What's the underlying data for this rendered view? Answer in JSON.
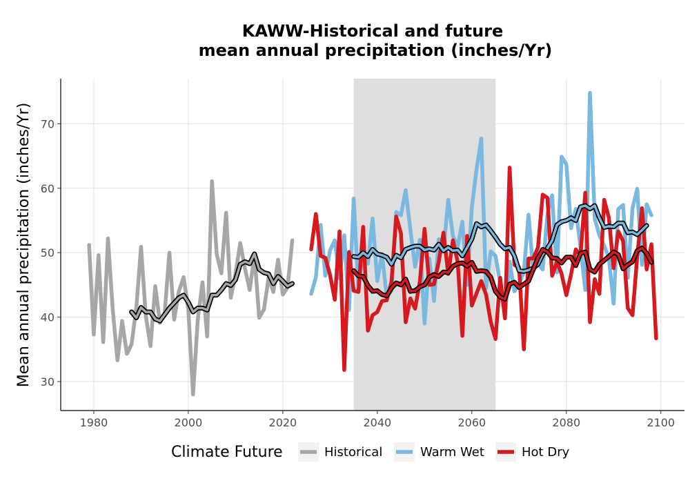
{
  "chart_data": {
    "type": "line",
    "title_lines": [
      "KAWW-Historical and future",
      "mean annual precipitation (inches/Yr)"
    ],
    "xlabel": "",
    "ylabel": "Mean annual precipitation (inches/Yr)",
    "xlim": [
      1973,
      2105
    ],
    "ylim": [
      25.5,
      77
    ],
    "xticks": [
      1980,
      2000,
      2020,
      2040,
      2060,
      2080,
      2100
    ],
    "yticks": [
      30,
      40,
      50,
      60,
      70
    ],
    "grid": true,
    "shaded_period": [
      2035,
      2065
    ],
    "legend": {
      "title": "Climate Future",
      "position": "bottom",
      "entries": [
        "Historical",
        "Warm Wet",
        "Hot Dry"
      ]
    },
    "colors": {
      "Historical": "#a6a6a6",
      "Warm Wet": "#7bb8e0",
      "Hot Dry": "#d6191e",
      "smooth": "#000000",
      "shade": "#dcdcdc",
      "grid": "#e0e0e0"
    },
    "series": [
      {
        "name": "Historical",
        "x_start": 1979,
        "values": [
          51.2,
          37.3,
          49.6,
          36.1,
          52.2,
          41.3,
          33.3,
          39.4,
          34.3,
          35.8,
          41.5,
          50.9,
          40.2,
          35.5,
          44.8,
          39.1,
          40.7,
          50.0,
          39.6,
          44.0,
          46.2,
          41.2,
          28.0,
          39.6,
          45.4,
          37.0,
          61.1,
          49.8,
          46.8,
          56.2,
          43.0,
          46.8,
          51.5,
          47.5,
          44.2,
          49.7,
          39.9,
          41.2,
          46.1,
          43.9,
          48.9,
          43.5,
          44.6,
          51.9
        ]
      },
      {
        "name": "Warm Wet",
        "x_start": 2026,
        "values": [
          43.6,
          46.2,
          54.3,
          46.4,
          50.4,
          51.9,
          46.0,
          52.7,
          41.1,
          58.4,
          44.3,
          50.8,
          48.3,
          55.3,
          45.6,
          49.8,
          43.1,
          44.1,
          56.3,
          55.8,
          59.7,
          53.5,
          47.8,
          52.0,
          39.0,
          49.1,
          42.5,
          52.1,
          50.2,
          58.2,
          52.6,
          50.9,
          54.8,
          45.0,
          57.0,
          63.0,
          67.7,
          44.5,
          50.2,
          49.5,
          45.3,
          40.1,
          48.6,
          44.0,
          45.2,
          47.0,
          55.9,
          47.2,
          48.3,
          47.4,
          56.0,
          58.9,
          46.9,
          64.9,
          63.7,
          53.8,
          56.8,
          50.8,
          44.2,
          74.8,
          55.3,
          52.7,
          51.1,
          49.2,
          42.1,
          56.8,
          57.4,
          46.1,
          56.9,
          59.9,
          48.1,
          57.5,
          55.8
        ]
      },
      {
        "name": "Hot Dry",
        "x_start": 2026,
        "values": [
          50.5,
          56.0,
          49.5,
          49.2,
          46.5,
          42.7,
          53.3,
          31.8,
          50.1,
          44.1,
          43.9,
          54.0,
          37.9,
          40.3,
          40.8,
          42.5,
          42.6,
          45.5,
          55.6,
          53.0,
          39.2,
          42.9,
          41.3,
          45.5,
          53.7,
          45.0,
          45.1,
          48.6,
          53.1,
          46.7,
          51.9,
          48.6,
          37.1,
          52.6,
          41.8,
          43.7,
          45.6,
          43.5,
          39.3,
          36.6,
          46.1,
          39.8,
          63.2,
          48.1,
          47.7,
          35.0,
          49.1,
          49.1,
          50.8,
          59.0,
          58.5,
          46.4,
          48.6,
          46.7,
          43.4,
          46.6,
          50.5,
          49.6,
          59.3,
          39.2,
          45.9,
          43.6,
          58.2,
          55.4,
          47.6,
          53.3,
          51.8,
          41.4,
          40.3,
          49.4,
          56.9,
          47.4,
          51.3,
          36.7
        ]
      },
      {
        "name": "Historical (10-yr running mean)",
        "x_start": 1988,
        "values": [
          40.8,
          39.9,
          41.5,
          40.8,
          40.8,
          39.7,
          39.4,
          40.4,
          41.4,
          42.2,
          43.0,
          43.4,
          42.3,
          40.8,
          41.4,
          41.4,
          41.1,
          43.4,
          43.4,
          44.2,
          45.2,
          44.9,
          45.8,
          48.2,
          48.6,
          48.3,
          49.8,
          47.4,
          46.9,
          46.7,
          45.2,
          46.3,
          45.6,
          44.8,
          45.2
        ]
      },
      {
        "name": "Warm Wet (10-yr running mean)",
        "x_start": 2035,
        "values": [
          49.4,
          49.3,
          50.0,
          49.4,
          50.5,
          49.8,
          49.6,
          49.3,
          48.2,
          49.6,
          49.2,
          50.5,
          50.8,
          51.0,
          51.0,
          50.4,
          50.6,
          50.4,
          51.3,
          50.3,
          50.8,
          50.3,
          50.4,
          49.5,
          50.8,
          52.1,
          54.5,
          54.0,
          54.3,
          53.4,
          52.4,
          51.3,
          50.6,
          50.8,
          49.5,
          47.2,
          47.1,
          47.3,
          47.6,
          48.2,
          49.7,
          50.7,
          51.9,
          54.3,
          54.8,
          55.0,
          55.4,
          55.0,
          57.1,
          57.3,
          56.8,
          57.3,
          55.4,
          53.9,
          54.1,
          54.0,
          54.6,
          54.6,
          53.1,
          53.2,
          52.8,
          53.5,
          54.2
        ]
      },
      {
        "name": "Hot Dry (10-yr running mean)",
        "x_start": 2035,
        "values": [
          47.2,
          46.4,
          46.3,
          44.9,
          44.0,
          44.1,
          43.5,
          43.3,
          44.5,
          45.3,
          45.0,
          45.9,
          44.0,
          44.1,
          44.7,
          45.0,
          46.2,
          46.6,
          46.3,
          47.0,
          46.9,
          47.9,
          48.3,
          48.4,
          47.9,
          48.5,
          47.1,
          47.2,
          47.1,
          46.2,
          44.0,
          43.1,
          42.8,
          45.1,
          45.4,
          44.6,
          45.1,
          45.6,
          47.4,
          49.2,
          50.5,
          50.1,
          49.2,
          49.1,
          48.4,
          49.3,
          49.3,
          48.0,
          49.9,
          50.1,
          47.4,
          47.0,
          48.2,
          48.8,
          49.4,
          50.1,
          49.7,
          47.5,
          48.1,
          48.6,
          50.3,
          50.7,
          49.9,
          48.5
        ]
      }
    ]
  }
}
